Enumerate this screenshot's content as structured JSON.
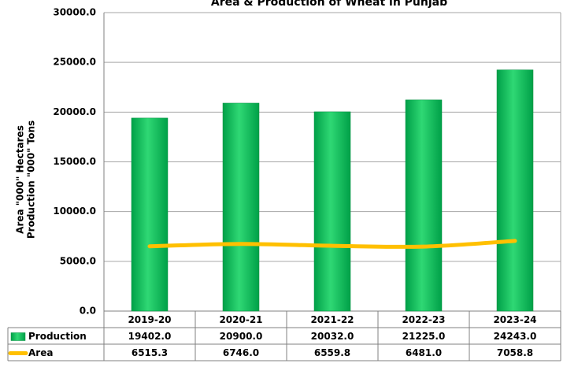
{
  "chart_data": {
    "type": "bar_line",
    "title": "Area & Production of Wheat in Punjab",
    "ylabel": [
      "Area \"000\" Hectares",
      "Production \"000\" Tons"
    ],
    "categories": [
      "2019-20",
      "2020-21",
      "2021-22",
      "2022-23",
      "2023-24"
    ],
    "series": [
      {
        "name": "Production",
        "type": "bar",
        "color": "#00b050",
        "values": [
          19402,
          20900,
          20032,
          21225,
          24243
        ],
        "value_labels": [
          "19402.0",
          "20900.0",
          "20032.0",
          "21225.0",
          "24243.0"
        ]
      },
      {
        "name": "Area",
        "type": "line",
        "color": "#ffc000",
        "values": [
          6515.3,
          6746,
          6559.8,
          6481,
          7058.8
        ],
        "value_labels": [
          "6515.3",
          "6746.0",
          "6559.8",
          "6481.0",
          "7058.8"
        ]
      }
    ],
    "ylim": [
      0,
      30000
    ],
    "yticks": [
      {
        "value": 0,
        "label": "0.0"
      },
      {
        "value": 5000,
        "label": "5000.0"
      },
      {
        "value": 10000,
        "label": "10000.0"
      },
      {
        "value": 15000,
        "label": "15000.0"
      },
      {
        "value": 20000,
        "label": "20000.0"
      },
      {
        "value": 25000,
        "label": "25000.0"
      },
      {
        "value": 30000,
        "label": "30000.0"
      }
    ],
    "grid": true
  }
}
